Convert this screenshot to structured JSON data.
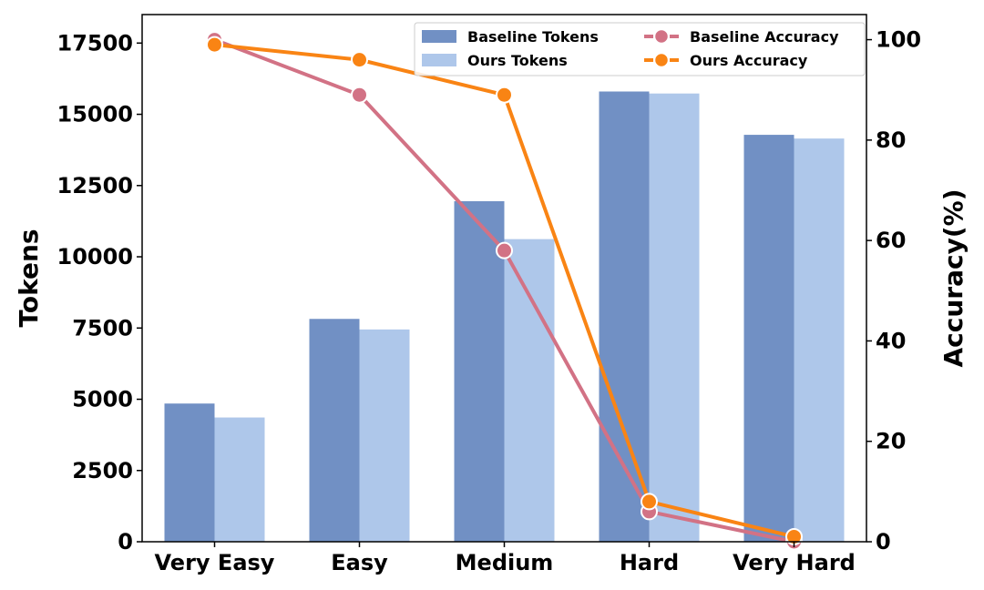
{
  "chart_data": {
    "type": "bar",
    "categories": [
      "Very Easy",
      "Easy",
      "Medium",
      "Hard",
      "Very Hard"
    ],
    "bar_series": [
      {
        "name": "Baseline Tokens",
        "color": "#7190c4",
        "values": [
          4850,
          7820,
          11950,
          15800,
          14280
        ]
      },
      {
        "name": "Ours Tokens",
        "color": "#aec7ea",
        "values": [
          4360,
          7450,
          10620,
          15730,
          14150
        ]
      }
    ],
    "line_series": [
      {
        "name": "Baseline Accuracy",
        "color": "#d27285",
        "values": [
          100,
          89,
          58,
          6,
          0
        ]
      },
      {
        "name": "Ours Accuracy",
        "color": "#f98414",
        "values": [
          99,
          96,
          89,
          8,
          1
        ]
      }
    ],
    "ylabel": "Tokens",
    "y2label": "Accuracy(%)",
    "ylim": [
      0,
      18500
    ],
    "y2lim": [
      0,
      105
    ],
    "yticks": [
      "0",
      "2500",
      "5000",
      "7500",
      "10000",
      "12500",
      "15000",
      "17500"
    ],
    "y2ticks": [
      "0",
      "20",
      "40",
      "60",
      "80",
      "100"
    ],
    "legend_position": "top-right",
    "grid": false
  }
}
